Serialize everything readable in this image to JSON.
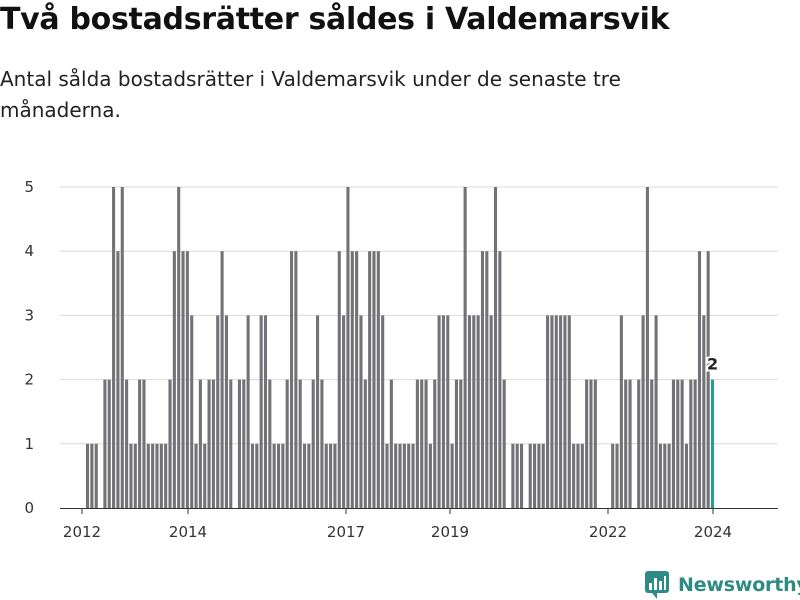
{
  "title": "Två bostadsrätter såldes i Valdemarsvik",
  "subtitle": "Antal sålda bostadsrätter i Valdemarsvik under de senaste tre månaderna.",
  "brand": {
    "name": "Newsworthy",
    "color": "#2e8b83",
    "logo_icon": "newsworthy-logo-icon"
  },
  "chart_data": {
    "type": "bar",
    "x_axis_ticks": [
      "2012",
      "2014",
      "2017",
      "2019",
      "2022",
      "2024"
    ],
    "y_axis_ticks": [
      "0",
      "1",
      "2",
      "3",
      "4",
      "5"
    ],
    "ylim": [
      0,
      5
    ],
    "bar_color": "#737276",
    "highlight_color": "#2a9d8f",
    "highlight_label": "2",
    "series": [
      {
        "values": [
          1,
          1,
          1,
          0,
          2,
          2,
          5,
          4,
          5,
          2,
          1,
          1,
          2,
          2,
          1,
          1,
          1,
          1,
          1,
          2,
          4,
          5,
          4,
          4,
          3,
          1,
          2,
          1,
          2,
          2,
          3,
          4,
          3,
          2,
          0,
          2,
          2,
          3,
          1,
          1,
          3,
          3,
          2,
          1,
          1,
          1,
          2,
          4,
          4,
          2,
          1,
          1,
          2,
          3,
          2,
          1,
          1,
          1,
          4,
          3,
          5,
          4,
          4,
          3,
          2,
          4,
          4,
          4,
          3,
          1,
          2,
          1,
          1,
          1,
          1,
          1,
          2,
          2,
          2,
          1,
          2,
          3,
          3,
          3,
          1,
          2,
          2,
          5,
          3,
          3,
          3,
          4,
          4,
          3,
          5,
          4,
          2,
          0,
          1,
          1,
          1,
          0,
          1,
          1,
          1,
          1,
          3,
          3,
          3,
          3,
          3,
          3,
          1,
          1,
          1,
          2,
          2,
          2,
          0,
          0,
          0,
          1,
          1,
          3,
          2,
          2,
          0,
          2,
          3,
          5,
          2,
          3,
          1,
          1,
          1,
          2,
          2,
          2,
          1,
          2,
          2,
          4,
          3,
          4,
          2
        ]
      }
    ]
  }
}
